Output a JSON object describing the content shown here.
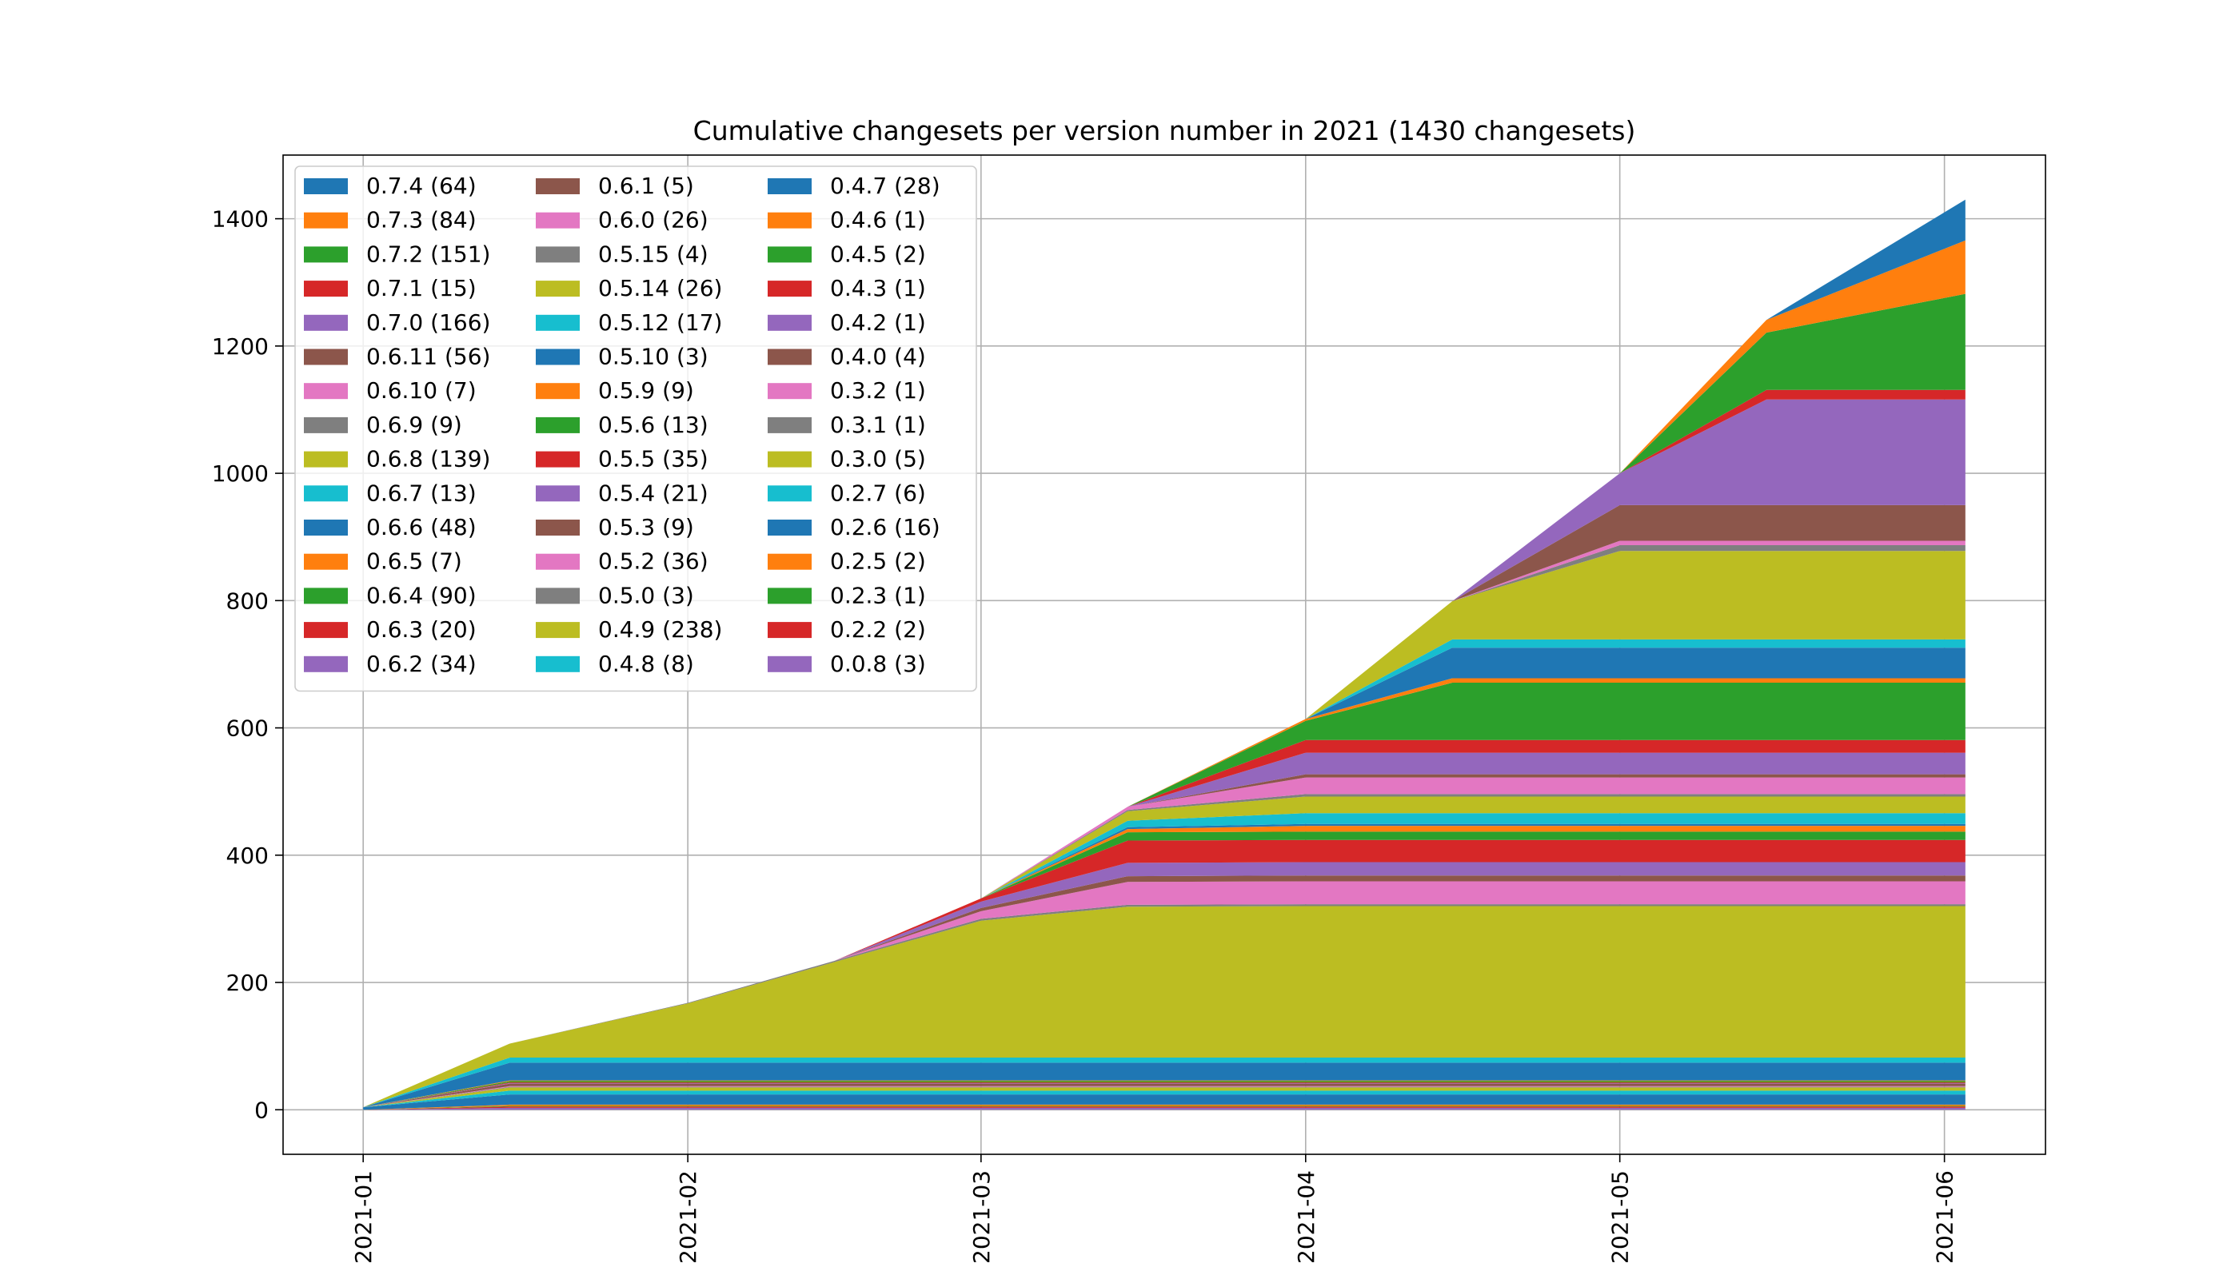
{
  "chart_data": {
    "type": "area",
    "stacked": true,
    "title": "Cumulative changesets per version number in 2021 (1430 changesets)",
    "xlabel": "",
    "ylabel": "",
    "x_ticks": [
      "2021-01",
      "2021-02",
      "2021-03",
      "2021-04",
      "2021-05",
      "2021-06"
    ],
    "x_range": [
      "2021-01-01",
      "2021-06-03"
    ],
    "ylim": [
      -70,
      1500
    ],
    "y_ticks": [
      0,
      200,
      400,
      600,
      800,
      1000,
      1200,
      1400
    ],
    "grid": true,
    "legend_position": "top-left",
    "legend_columns": 3,
    "x_dates": [
      "2021-01-01",
      "2021-01-15",
      "2021-02-01",
      "2021-02-15",
      "2021-03-01",
      "2021-03-15",
      "2021-04-01",
      "2021-04-15",
      "2021-05-01",
      "2021-05-15",
      "2021-06-03"
    ],
    "series": [
      {
        "name": "0.0.8 (3)",
        "color": "#9467bd",
        "values": [
          0,
          3,
          3,
          3,
          3,
          3,
          3,
          3,
          3,
          3,
          3
        ]
      },
      {
        "name": "0.2.2 (2)",
        "color": "#d62728",
        "values": [
          0,
          2,
          2,
          2,
          2,
          2,
          2,
          2,
          2,
          2,
          2
        ]
      },
      {
        "name": "0.2.3 (1)",
        "color": "#2ca02c",
        "values": [
          0,
          1,
          1,
          1,
          1,
          1,
          1,
          1,
          1,
          1,
          1
        ]
      },
      {
        "name": "0.2.5 (2)",
        "color": "#ff7f0e",
        "values": [
          0,
          2,
          2,
          2,
          2,
          2,
          2,
          2,
          2,
          2,
          2
        ]
      },
      {
        "name": "0.2.6 (16)",
        "color": "#1f77b4",
        "values": [
          4,
          16,
          16,
          16,
          16,
          16,
          16,
          16,
          16,
          16,
          16
        ]
      },
      {
        "name": "0.2.7 (6)",
        "color": "#17becf",
        "values": [
          0,
          6,
          6,
          6,
          6,
          6,
          6,
          6,
          6,
          6,
          6
        ]
      },
      {
        "name": "0.3.0 (5)",
        "color": "#bcbd22",
        "values": [
          0,
          5,
          5,
          5,
          5,
          5,
          5,
          5,
          5,
          5,
          5
        ]
      },
      {
        "name": "0.3.1 (1)",
        "color": "#7f7f7f",
        "values": [
          0,
          1,
          1,
          1,
          1,
          1,
          1,
          1,
          1,
          1,
          1
        ]
      },
      {
        "name": "0.3.2 (1)",
        "color": "#e377c2",
        "values": [
          0,
          1,
          1,
          1,
          1,
          1,
          1,
          1,
          1,
          1,
          1
        ]
      },
      {
        "name": "0.4.0 (4)",
        "color": "#8c564b",
        "values": [
          0,
          4,
          4,
          4,
          4,
          4,
          4,
          4,
          4,
          4,
          4
        ]
      },
      {
        "name": "0.4.2 (1)",
        "color": "#9467bd",
        "values": [
          0,
          1,
          1,
          1,
          1,
          1,
          1,
          1,
          1,
          1,
          1
        ]
      },
      {
        "name": "0.4.3 (1)",
        "color": "#d62728",
        "values": [
          0,
          1,
          1,
          1,
          1,
          1,
          1,
          1,
          1,
          1,
          1
        ]
      },
      {
        "name": "0.4.5 (2)",
        "color": "#2ca02c",
        "values": [
          0,
          2,
          2,
          2,
          2,
          2,
          2,
          2,
          2,
          2,
          2
        ]
      },
      {
        "name": "0.4.6 (1)",
        "color": "#ff7f0e",
        "values": [
          0,
          1,
          1,
          1,
          1,
          1,
          1,
          1,
          1,
          1,
          1
        ]
      },
      {
        "name": "0.4.7 (28)",
        "color": "#1f77b4",
        "values": [
          0,
          28,
          28,
          28,
          28,
          28,
          28,
          28,
          28,
          28,
          28
        ]
      },
      {
        "name": "0.4.8 (8)",
        "color": "#17becf",
        "values": [
          0,
          8,
          8,
          8,
          8,
          8,
          8,
          8,
          8,
          8,
          8
        ]
      },
      {
        "name": "0.4.9 (238)",
        "color": "#bcbd22",
        "values": [
          0,
          22,
          85,
          150,
          215,
          237,
          238,
          238,
          238,
          238,
          238
        ]
      },
      {
        "name": "0.5.0 (3)",
        "color": "#7f7f7f",
        "values": [
          0,
          0,
          1,
          2,
          3,
          3,
          3,
          3,
          3,
          3,
          3
        ]
      },
      {
        "name": "0.5.2 (36)",
        "color": "#e377c2",
        "values": [
          0,
          0,
          0,
          0,
          12,
          36,
          36,
          36,
          36,
          36,
          36
        ]
      },
      {
        "name": "0.5.3 (9)",
        "color": "#8c564b",
        "values": [
          0,
          0,
          0,
          0,
          5,
          9,
          9,
          9,
          9,
          9,
          9
        ]
      },
      {
        "name": "0.5.4 (21)",
        "color": "#9467bd",
        "values": [
          0,
          0,
          0,
          0,
          10,
          21,
          21,
          21,
          21,
          21,
          21
        ]
      },
      {
        "name": "0.5.5 (35)",
        "color": "#d62728",
        "values": [
          0,
          0,
          0,
          0,
          5,
          35,
          35,
          35,
          35,
          35,
          35
        ]
      },
      {
        "name": "0.5.6 (13)",
        "color": "#2ca02c",
        "values": [
          0,
          0,
          0,
          0,
          0,
          13,
          13,
          13,
          13,
          13,
          13
        ]
      },
      {
        "name": "0.5.9 (9)",
        "color": "#ff7f0e",
        "values": [
          0,
          0,
          0,
          0,
          0,
          5,
          9,
          9,
          9,
          9,
          9
        ]
      },
      {
        "name": "0.5.10 (3)",
        "color": "#1f77b4",
        "values": [
          0,
          0,
          0,
          0,
          0,
          3,
          3,
          3,
          3,
          3,
          3
        ]
      },
      {
        "name": "0.5.12 (17)",
        "color": "#17becf",
        "values": [
          0,
          0,
          0,
          0,
          0,
          10,
          17,
          17,
          17,
          17,
          17
        ]
      },
      {
        "name": "0.5.14 (26)",
        "color": "#bcbd22",
        "values": [
          0,
          0,
          0,
          0,
          0,
          15,
          26,
          26,
          26,
          26,
          26
        ]
      },
      {
        "name": "0.5.15 (4)",
        "color": "#7f7f7f",
        "values": [
          0,
          0,
          0,
          0,
          0,
          2,
          4,
          4,
          4,
          4,
          4
        ]
      },
      {
        "name": "0.6.0 (26)",
        "color": "#e377c2",
        "values": [
          0,
          0,
          0,
          0,
          0,
          5,
          26,
          26,
          26,
          26,
          26
        ]
      },
      {
        "name": "0.6.1 (5)",
        "color": "#8c564b",
        "values": [
          0,
          0,
          0,
          0,
          0,
          0,
          5,
          5,
          5,
          5,
          5
        ]
      },
      {
        "name": "0.6.2 (34)",
        "color": "#9467bd",
        "values": [
          0,
          0,
          0,
          0,
          0,
          0,
          34,
          34,
          34,
          34,
          34
        ]
      },
      {
        "name": "0.6.3 (20)",
        "color": "#d62728",
        "values": [
          0,
          0,
          0,
          0,
          0,
          0,
          20,
          20,
          20,
          20,
          20
        ]
      },
      {
        "name": "0.6.4 (90)",
        "color": "#2ca02c",
        "values": [
          0,
          0,
          0,
          0,
          0,
          0,
          30,
          90,
          90,
          90,
          90
        ]
      },
      {
        "name": "0.6.5 (7)",
        "color": "#ff7f0e",
        "values": [
          0,
          0,
          0,
          0,
          0,
          0,
          3,
          7,
          7,
          7,
          7
        ]
      },
      {
        "name": "0.6.6 (48)",
        "color": "#1f77b4",
        "values": [
          0,
          0,
          0,
          0,
          0,
          0,
          0,
          48,
          48,
          48,
          48
        ]
      },
      {
        "name": "0.6.7 (13)",
        "color": "#17becf",
        "values": [
          0,
          0,
          0,
          0,
          0,
          0,
          0,
          13,
          13,
          13,
          13
        ]
      },
      {
        "name": "0.6.8 (139)",
        "color": "#bcbd22",
        "values": [
          0,
          0,
          0,
          0,
          0,
          0,
          0,
          60,
          139,
          139,
          139
        ]
      },
      {
        "name": "0.6.9 (9)",
        "color": "#7f7f7f",
        "values": [
          0,
          0,
          0,
          0,
          0,
          0,
          0,
          0,
          9,
          9,
          9
        ]
      },
      {
        "name": "0.6.10 (7)",
        "color": "#e377c2",
        "values": [
          0,
          0,
          0,
          0,
          0,
          0,
          0,
          0,
          7,
          7,
          7
        ]
      },
      {
        "name": "0.6.11 (56)",
        "color": "#8c564b",
        "values": [
          0,
          0,
          0,
          0,
          0,
          0,
          0,
          0,
          56,
          56,
          56
        ]
      },
      {
        "name": "0.7.0 (166)",
        "color": "#9467bd",
        "values": [
          0,
          0,
          0,
          0,
          0,
          0,
          0,
          0,
          50,
          166,
          166
        ]
      },
      {
        "name": "0.7.1 (15)",
        "color": "#d62728",
        "values": [
          0,
          0,
          0,
          0,
          0,
          0,
          0,
          0,
          0,
          15,
          15
        ]
      },
      {
        "name": "0.7.2 (151)",
        "color": "#2ca02c",
        "values": [
          0,
          0,
          0,
          0,
          0,
          0,
          0,
          0,
          0,
          90,
          151
        ]
      },
      {
        "name": "0.7.3 (84)",
        "color": "#ff7f0e",
        "values": [
          0,
          0,
          0,
          0,
          0,
          0,
          0,
          0,
          0,
          20,
          84
        ]
      },
      {
        "name": "0.7.4 (64)",
        "color": "#1f77b4",
        "values": [
          0,
          0,
          0,
          0,
          0,
          0,
          0,
          0,
          0,
          0,
          64
        ]
      }
    ]
  }
}
